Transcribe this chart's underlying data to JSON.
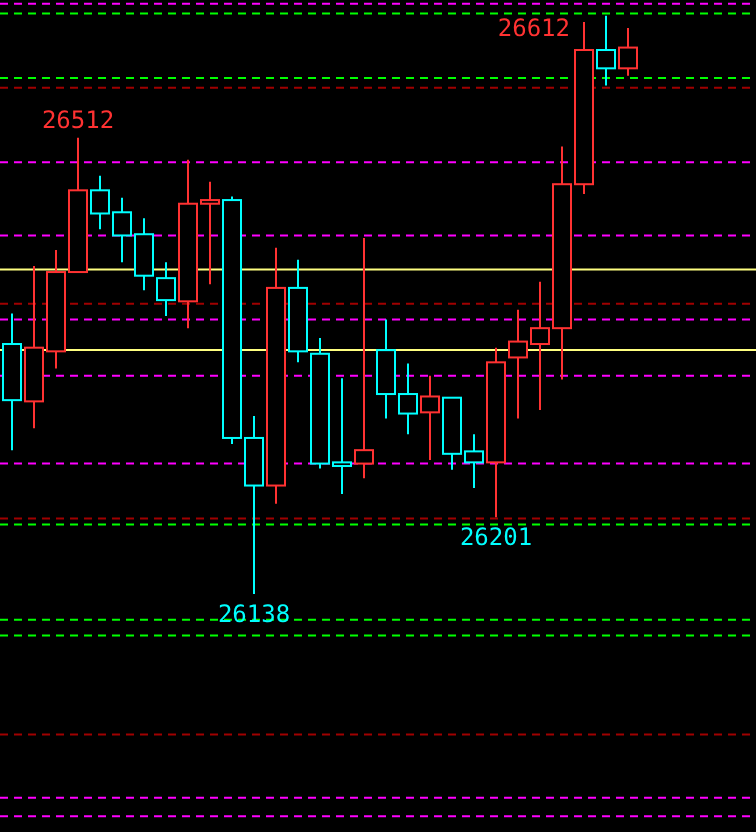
{
  "chart_data": {
    "type": "candlestick",
    "categories": [
      null,
      null,
      null,
      null,
      null,
      null,
      null,
      null,
      null,
      null,
      null,
      null,
      null,
      null,
      null,
      null,
      null,
      null,
      null,
      null,
      null,
      null,
      null,
      null,
      null,
      null,
      null,
      null,
      null
    ],
    "ohlc": [
      [
        26343,
        26368,
        26256,
        26297
      ],
      [
        26296,
        26407,
        26274,
        26340
      ],
      [
        26337,
        26420,
        26323,
        26402
      ],
      [
        26402,
        26512,
        26402,
        26469
      ],
      [
        26469,
        26481,
        26437,
        26450
      ],
      [
        26451,
        26463,
        26410,
        26432
      ],
      [
        26433,
        26446,
        26387,
        26399
      ],
      [
        26397,
        26410,
        26366,
        26379
      ],
      [
        26378,
        26494,
        26356,
        26458
      ],
      [
        26458,
        26476,
        26392,
        26461
      ],
      [
        26461,
        26464,
        26261,
        26266
      ],
      [
        26266,
        26284,
        26138,
        26227
      ],
      [
        26227,
        26422,
        26212,
        26389
      ],
      [
        26389,
        26412,
        26328,
        26337
      ],
      [
        26335,
        26348,
        26241,
        26245
      ],
      [
        26246,
        26315,
        26220,
        26243
      ],
      [
        26245,
        26430,
        26233,
        26256
      ],
      [
        26338,
        26363,
        26282,
        26302
      ],
      [
        26302,
        26327,
        26269,
        26286
      ],
      [
        26287,
        26317,
        26248,
        26300
      ],
      [
        26299,
        26299,
        26240,
        26253
      ],
      [
        26255,
        26269,
        26225,
        26246
      ],
      [
        26246,
        26340,
        26201,
        26328
      ],
      [
        26332,
        26371,
        26282,
        26345
      ],
      [
        26343,
        26394,
        26289,
        26356
      ],
      [
        26356,
        26505,
        26314,
        26474
      ],
      [
        26474,
        26607,
        26466,
        26584
      ],
      [
        26584,
        26612,
        26555,
        26569
      ],
      [
        26569,
        26602,
        26563,
        26586
      ]
    ],
    "colors": [
      "#00ffff",
      "#ff3232",
      "#ff3232",
      "#ff3232",
      "#00ffff",
      "#00ffff",
      "#00ffff",
      "#00ffff",
      "#ff3232",
      "#ff3232",
      "#00ffff",
      "#00ffff",
      "#ff3232",
      "#00ffff",
      "#00ffff",
      "#00ffff",
      "#ff3232",
      "#00ffff",
      "#00ffff",
      "#ff3232",
      "#00ffff",
      "#00ffff",
      "#ff3232",
      "#ff3232",
      "#ff3232",
      "#ff3232",
      "#ff3232",
      "#00ffff",
      "#ff3232"
    ],
    "ylim": [
      25943,
      26625
    ],
    "annotations": [
      {
        "text": "26512",
        "y": 26512
      },
      {
        "text": "26612",
        "y": 26612
      },
      {
        "text": "26138",
        "y": 26138
      },
      {
        "text": "26201",
        "y": 26201
      }
    ],
    "ref_lines": [
      {
        "axis": "y",
        "value": 26622,
        "color": "#ff00ff",
        "line_style": "dashed"
      },
      {
        "axis": "y",
        "value": 26614,
        "color": "#00ff00",
        "line_style": "dashed"
      },
      {
        "axis": "y",
        "value": 26561,
        "color": "#00ff00",
        "line_style": "dashed"
      },
      {
        "axis": "y",
        "value": 26553,
        "color": "#a00000",
        "line_style": "dashed"
      },
      {
        "axis": "y",
        "value": 26492,
        "color": "#ff00ff",
        "line_style": "dashed"
      },
      {
        "axis": "y",
        "value": 26432,
        "color": "#ff00ff",
        "line_style": "dashed"
      },
      {
        "axis": "y",
        "value": 26404,
        "color": "#ffff80",
        "line_style": "solid"
      },
      {
        "axis": "y",
        "value": 26376,
        "color": "#a00000",
        "line_style": "dashed"
      },
      {
        "axis": "y",
        "value": 26363,
        "color": "#ff00ff",
        "line_style": "dashed"
      },
      {
        "axis": "y",
        "value": 26338,
        "color": "#ffff80",
        "line_style": "solid"
      },
      {
        "axis": "y",
        "value": 26317,
        "color": "#ff00ff",
        "line_style": "dashed"
      },
      {
        "axis": "y",
        "value": 26245,
        "color": "#ff00ff",
        "line_style": "dashed"
      },
      {
        "axis": "y",
        "value": 26200,
        "color": "#a00000",
        "line_style": "dashed"
      },
      {
        "axis": "y",
        "value": 26195,
        "color": "#00ff00",
        "line_style": "dashed"
      },
      {
        "axis": "y",
        "value": 26117,
        "color": "#00ff00",
        "line_style": "dashed"
      },
      {
        "axis": "y",
        "value": 26104,
        "color": "#00ff00",
        "line_style": "dashed"
      },
      {
        "axis": "y",
        "value": 26023,
        "color": "#a00000",
        "line_style": "dashed"
      },
      {
        "axis": "y",
        "value": 25971,
        "color": "#ff00ff",
        "line_style": "dashed"
      },
      {
        "axis": "y",
        "value": 25956,
        "color": "#ff00ff",
        "line_style": "dashed"
      }
    ]
  }
}
